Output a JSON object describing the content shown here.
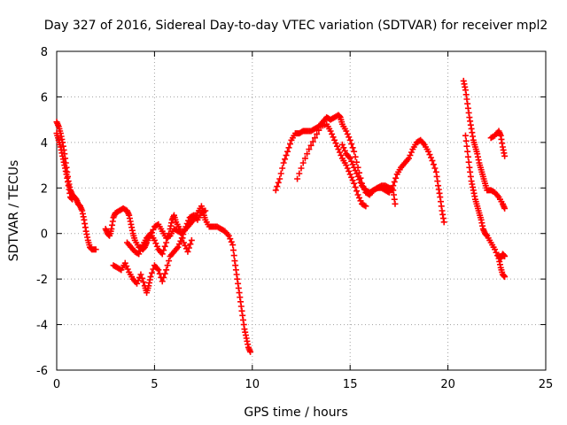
{
  "chart_data": {
    "type": "scatter",
    "title": "Day 327 of 2016, Sidereal Day-to-day VTEC variation (SDTVAR) for receiver mpl2",
    "xlabel": "GPS time / hours",
    "ylabel": "SDTVAR / TECUs",
    "xlim": [
      0,
      25
    ],
    "ylim": [
      -6,
      8
    ],
    "xticks": [
      0,
      5,
      10,
      15,
      20,
      25
    ],
    "yticks": [
      -6,
      -4,
      -2,
      0,
      2,
      4,
      6,
      8
    ],
    "xtick_labels": [
      "0",
      "5",
      "10",
      "15",
      "20",
      "25"
    ],
    "ytick_labels": [
      "-6",
      "-4",
      "-2",
      "0",
      "2",
      "4",
      "6",
      "8"
    ],
    "grid": true,
    "marker": "+",
    "color": "#ff0000",
    "series": [
      {
        "name": "seg-a-upper",
        "points": [
          [
            0.0,
            4.9
          ],
          [
            0.1,
            4.7
          ],
          [
            0.2,
            4.4
          ],
          [
            0.3,
            4.0
          ],
          [
            0.4,
            3.5
          ],
          [
            0.5,
            2.9
          ],
          [
            0.6,
            2.3
          ],
          [
            0.7,
            1.9
          ],
          [
            0.8,
            1.7
          ],
          [
            0.9,
            1.6
          ],
          [
            1.0,
            1.5
          ],
          [
            1.1,
            1.3
          ],
          [
            1.2,
            1.2
          ],
          [
            1.3,
            1.0
          ],
          [
            1.4,
            0.6
          ],
          [
            1.5,
            0.1
          ],
          [
            1.6,
            -0.3
          ],
          [
            1.7,
            -0.6
          ],
          [
            1.8,
            -0.7
          ],
          [
            2.0,
            -0.7
          ]
        ]
      },
      {
        "name": "seg-a-lower",
        "points": [
          [
            0.0,
            4.4
          ],
          [
            0.1,
            4.1
          ],
          [
            0.2,
            3.8
          ],
          [
            0.3,
            3.4
          ],
          [
            0.4,
            3.0
          ],
          [
            0.5,
            2.6
          ],
          [
            0.6,
            2.1
          ],
          [
            0.7,
            1.6
          ],
          [
            0.8,
            1.5
          ]
        ]
      },
      {
        "name": "seg-b",
        "points": [
          [
            2.5,
            0.2
          ],
          [
            2.6,
            0.0
          ],
          [
            2.7,
            -0.1
          ],
          [
            2.8,
            0.2
          ],
          [
            2.9,
            0.7
          ],
          [
            3.0,
            0.9
          ],
          [
            3.2,
            1.0
          ],
          [
            3.4,
            1.1
          ],
          [
            3.6,
            1.0
          ],
          [
            3.7,
            0.8
          ],
          [
            3.8,
            0.4
          ],
          [
            3.9,
            0.0
          ],
          [
            4.0,
            -0.3
          ],
          [
            4.2,
            -0.6
          ],
          [
            4.4,
            -0.7
          ],
          [
            4.5,
            -0.6
          ],
          [
            4.6,
            -0.4
          ],
          [
            4.8,
            -0.1
          ],
          [
            5.0,
            0.3
          ],
          [
            5.2,
            0.4
          ],
          [
            5.4,
            0.1
          ],
          [
            5.6,
            -0.2
          ],
          [
            5.8,
            -0.1
          ],
          [
            6.0,
            0.2
          ],
          [
            6.2,
            0.1
          ],
          [
            6.4,
            0.0
          ],
          [
            6.6,
            0.2
          ],
          [
            6.8,
            0.4
          ],
          [
            7.0,
            0.6
          ],
          [
            7.2,
            0.9
          ],
          [
            7.4,
            1.2
          ],
          [
            7.5,
            0.9
          ],
          [
            7.6,
            0.6
          ],
          [
            7.8,
            0.3
          ],
          [
            8.0,
            0.3
          ],
          [
            8.2,
            0.3
          ],
          [
            8.4,
            0.2
          ],
          [
            8.6,
            0.1
          ],
          [
            8.8,
            -0.1
          ],
          [
            9.0,
            -0.5
          ],
          [
            9.1,
            -1.2
          ],
          [
            9.2,
            -1.8
          ],
          [
            9.3,
            -2.4
          ],
          [
            9.4,
            -3.0
          ],
          [
            9.5,
            -3.6
          ],
          [
            9.6,
            -4.2
          ],
          [
            9.7,
            -4.6
          ],
          [
            9.8,
            -5.0
          ],
          [
            9.9,
            -5.2
          ]
        ]
      },
      {
        "name": "seg-c",
        "points": [
          [
            2.9,
            -1.4
          ],
          [
            3.1,
            -1.5
          ],
          [
            3.3,
            -1.6
          ],
          [
            3.5,
            -1.3
          ],
          [
            3.7,
            -1.7
          ],
          [
            3.9,
            -2.0
          ],
          [
            4.1,
            -2.2
          ],
          [
            4.3,
            -1.8
          ],
          [
            4.5,
            -2.3
          ],
          [
            4.6,
            -2.6
          ],
          [
            4.7,
            -2.3
          ],
          [
            4.8,
            -1.9
          ],
          [
            5.0,
            -1.4
          ],
          [
            5.2,
            -1.6
          ],
          [
            5.4,
            -2.1
          ],
          [
            5.6,
            -1.6
          ],
          [
            5.8,
            -1.0
          ],
          [
            6.0,
            -0.8
          ],
          [
            6.2,
            -0.6
          ],
          [
            6.4,
            -0.2
          ],
          [
            6.6,
            0.3
          ],
          [
            6.8,
            0.7
          ],
          [
            7.0,
            0.8
          ],
          [
            7.2,
            0.6
          ],
          [
            7.4,
            0.9
          ],
          [
            7.6,
            1.0
          ]
        ]
      },
      {
        "name": "seg-c2",
        "points": [
          [
            3.6,
            -0.4
          ],
          [
            3.8,
            -0.6
          ],
          [
            4.0,
            -0.8
          ],
          [
            4.2,
            -0.9
          ],
          [
            4.4,
            -0.5
          ],
          [
            4.6,
            -0.2
          ],
          [
            4.8,
            0.0
          ],
          [
            5.0,
            -0.3
          ],
          [
            5.2,
            -0.7
          ],
          [
            5.4,
            -0.9
          ],
          [
            5.6,
            -0.4
          ],
          [
            5.8,
            0.2
          ],
          [
            5.9,
            0.6
          ],
          [
            6.0,
            0.8
          ],
          [
            6.1,
            0.5
          ],
          [
            6.3,
            0.2
          ],
          [
            6.5,
            -0.4
          ],
          [
            6.7,
            -0.8
          ],
          [
            6.9,
            -0.3
          ]
        ]
      },
      {
        "name": "seg-d",
        "points": [
          [
            11.2,
            1.9
          ],
          [
            11.4,
            2.4
          ],
          [
            11.6,
            3.1
          ],
          [
            11.8,
            3.6
          ],
          [
            12.0,
            4.1
          ],
          [
            12.2,
            4.4
          ],
          [
            12.4,
            4.4
          ],
          [
            12.6,
            4.5
          ],
          [
            12.8,
            4.5
          ],
          [
            13.0,
            4.5
          ],
          [
            13.2,
            4.6
          ],
          [
            13.4,
            4.7
          ],
          [
            13.6,
            4.9
          ],
          [
            13.8,
            5.1
          ],
          [
            14.0,
            5.0
          ],
          [
            14.2,
            5.1
          ],
          [
            14.4,
            5.2
          ],
          [
            14.5,
            5.1
          ],
          [
            14.6,
            4.8
          ],
          [
            14.8,
            4.5
          ],
          [
            15.0,
            4.1
          ],
          [
            15.2,
            3.6
          ],
          [
            15.4,
            2.9
          ],
          [
            15.6,
            2.2
          ],
          [
            15.8,
            1.8
          ],
          [
            16.0,
            1.7
          ],
          [
            16.2,
            1.9
          ],
          [
            16.4,
            2.0
          ],
          [
            16.6,
            2.1
          ],
          [
            16.8,
            2.1
          ],
          [
            17.0,
            2.0
          ],
          [
            17.2,
            1.9
          ],
          [
            17.3,
            1.3
          ]
        ]
      },
      {
        "name": "seg-e",
        "points": [
          [
            12.3,
            2.4
          ],
          [
            12.6,
            3.1
          ],
          [
            12.9,
            3.7
          ],
          [
            13.2,
            4.2
          ],
          [
            13.5,
            4.7
          ],
          [
            13.8,
            4.8
          ],
          [
            14.0,
            4.5
          ],
          [
            14.2,
            4.1
          ],
          [
            14.4,
            3.7
          ],
          [
            14.6,
            3.3
          ],
          [
            14.8,
            3.0
          ],
          [
            15.0,
            2.6
          ],
          [
            15.2,
            2.2
          ],
          [
            15.4,
            1.7
          ],
          [
            15.6,
            1.3
          ],
          [
            15.8,
            1.2
          ]
        ]
      },
      {
        "name": "seg-f",
        "points": [
          [
            14.6,
            3.9
          ],
          [
            14.8,
            3.5
          ],
          [
            15.0,
            3.3
          ],
          [
            15.2,
            2.9
          ],
          [
            15.4,
            2.5
          ],
          [
            15.6,
            2.1
          ],
          [
            15.8,
            1.9
          ],
          [
            16.0,
            1.8
          ],
          [
            16.2,
            1.9
          ],
          [
            16.4,
            2.0
          ],
          [
            16.6,
            2.0
          ],
          [
            16.8,
            1.9
          ],
          [
            17.0,
            1.8
          ],
          [
            17.2,
            2.1
          ],
          [
            17.4,
            2.6
          ],
          [
            17.6,
            2.9
          ],
          [
            17.8,
            3.1
          ],
          [
            18.0,
            3.3
          ],
          [
            18.2,
            3.7
          ],
          [
            18.4,
            4.0
          ],
          [
            18.6,
            4.1
          ],
          [
            18.8,
            3.9
          ],
          [
            19.0,
            3.6
          ],
          [
            19.2,
            3.2
          ],
          [
            19.4,
            2.7
          ],
          [
            19.5,
            2.1
          ],
          [
            19.6,
            1.6
          ],
          [
            19.7,
            1.0
          ],
          [
            19.8,
            0.5
          ]
        ]
      },
      {
        "name": "seg-g",
        "points": [
          [
            20.8,
            6.7
          ],
          [
            20.9,
            6.3
          ],
          [
            21.0,
            5.7
          ],
          [
            21.1,
            5.1
          ],
          [
            21.2,
            4.6
          ],
          [
            21.3,
            4.1
          ],
          [
            21.4,
            3.8
          ],
          [
            21.5,
            3.5
          ],
          [
            21.6,
            3.1
          ],
          [
            21.7,
            2.8
          ],
          [
            21.8,
            2.5
          ],
          [
            21.9,
            2.2
          ],
          [
            22.0,
            1.9
          ],
          [
            22.2,
            1.9
          ],
          [
            22.4,
            1.8
          ],
          [
            22.6,
            1.6
          ],
          [
            22.8,
            1.3
          ],
          [
            22.9,
            1.1
          ]
        ]
      },
      {
        "name": "seg-h",
        "points": [
          [
            20.9,
            4.3
          ],
          [
            21.0,
            3.6
          ],
          [
            21.1,
            2.9
          ],
          [
            21.2,
            2.3
          ],
          [
            21.3,
            1.9
          ],
          [
            21.4,
            1.5
          ],
          [
            21.5,
            1.2
          ],
          [
            21.6,
            0.9
          ],
          [
            21.7,
            0.6
          ],
          [
            21.8,
            0.2
          ],
          [
            21.9,
            0.0
          ],
          [
            22.0,
            -0.1
          ],
          [
            22.2,
            -0.4
          ],
          [
            22.4,
            -0.7
          ],
          [
            22.6,
            -1.1
          ],
          [
            22.7,
            -1.5
          ],
          [
            22.8,
            -1.8
          ],
          [
            22.9,
            -1.9
          ]
        ]
      },
      {
        "name": "seg-i",
        "points": [
          [
            22.2,
            4.2
          ],
          [
            22.4,
            4.3
          ],
          [
            22.6,
            4.5
          ],
          [
            22.7,
            4.3
          ],
          [
            22.8,
            3.8
          ],
          [
            22.9,
            3.4
          ]
        ]
      },
      {
        "name": "seg-j",
        "points": [
          [
            22.6,
            -1.0
          ],
          [
            22.7,
            -1.1
          ],
          [
            22.8,
            -0.9
          ],
          [
            22.9,
            -1.0
          ]
        ]
      }
    ]
  }
}
